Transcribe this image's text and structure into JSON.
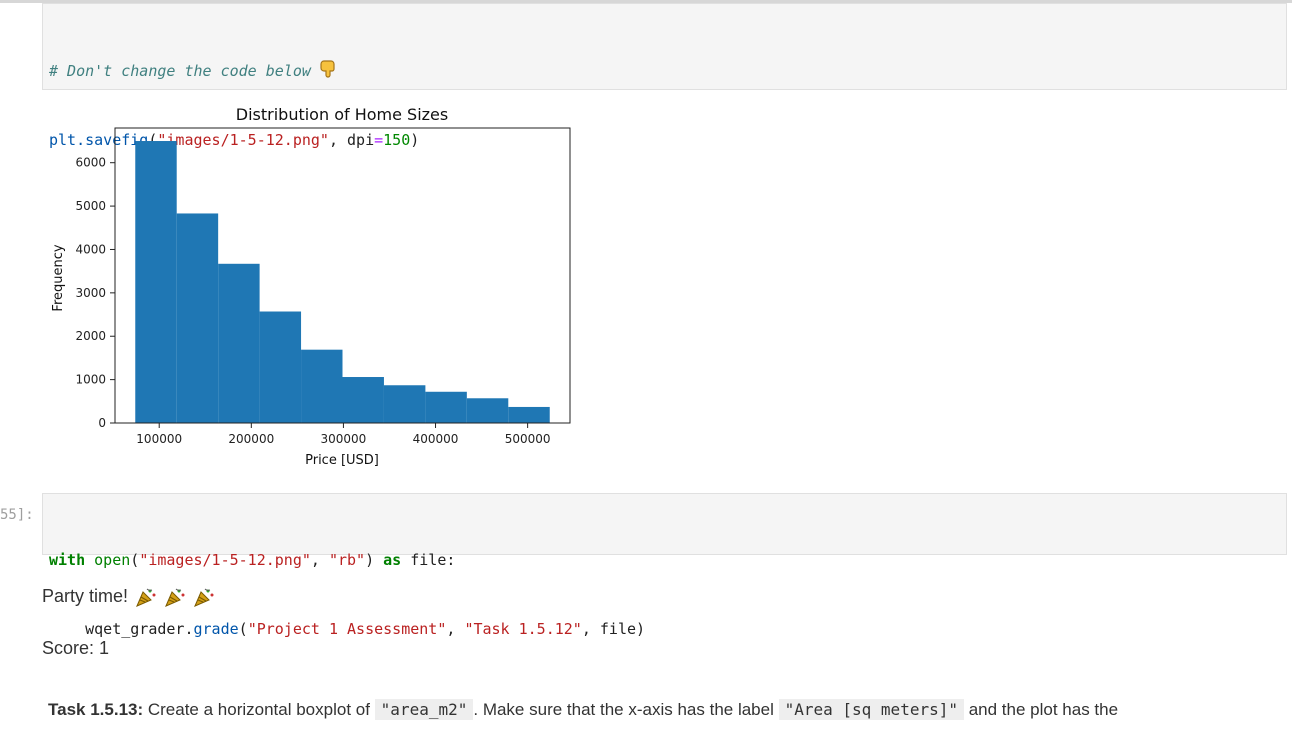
{
  "cell1": {
    "comment": "# Don't change the code below",
    "line2_fn": "plt.savefig",
    "line2_paren_open": "(",
    "line2_str": "\"images/1-5-12.png\"",
    "line2_sep": ", dpi",
    "line2_eq": "=",
    "line2_num": "150",
    "line2_close": ")"
  },
  "chart_data": {
    "type": "bar",
    "title": "Distribution of Home Sizes",
    "xlabel": "Price [USD]",
    "ylabel": "Frequency",
    "xlim": [
      52000,
      546000
    ],
    "ylim": [
      0,
      6800
    ],
    "bar_color": "#1f77b4",
    "bin_edges": [
      74000,
      119000,
      164000,
      209000,
      254000,
      299000,
      344000,
      389000,
      434000,
      479000,
      524000
    ],
    "values": [
      6500,
      4830,
      3670,
      2570,
      1690,
      1060,
      870,
      720,
      570,
      370
    ],
    "x_ticks": [
      100000,
      200000,
      300000,
      400000,
      500000
    ],
    "x_tick_labels": [
      "100000",
      "200000",
      "300000",
      "400000",
      "500000"
    ],
    "y_ticks": [
      0,
      1000,
      2000,
      3000,
      4000,
      5000,
      6000
    ],
    "y_tick_labels": [
      "0",
      "1000",
      "2000",
      "3000",
      "4000",
      "5000",
      "6000"
    ]
  },
  "cell2": {
    "prompt": "55]:",
    "kw_with": "with",
    "fn_open": "open",
    "paren1": "(",
    "str_path": "\"images/1-5-12.png\"",
    "comma1": ", ",
    "str_rb": "\"rb\"",
    "paren1_close": ") ",
    "kw_as": "as",
    "rest1": " file:",
    "indent": "    wqet_grader.",
    "fn_grade": "grade",
    "paren2": "(",
    "str_project": "\"Project 1 Assessment\"",
    "comma2": ", ",
    "str_task": "\"Task 1.5.12\"",
    "rest2": ", file)"
  },
  "output": {
    "party_text": "Party time!",
    "score_text": "Score: 1"
  },
  "task": {
    "bold": "Task 1.5.13:",
    "text1": " Create a horizontal boxplot of ",
    "code1": "\"area_m2\"",
    "text2": ". Make sure that the x-axis has the label ",
    "code2": "\"Area [sq meters]\"",
    "text3": " and the plot has the"
  }
}
